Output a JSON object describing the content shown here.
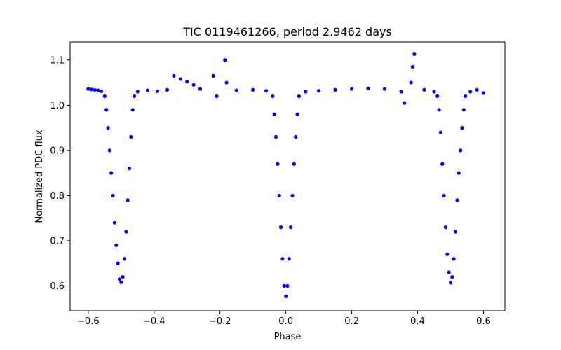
{
  "chart_data": {
    "type": "scatter",
    "title": "TIC 0119461266, period 2.9462 days",
    "xlabel": "Phase",
    "ylabel": "Normalized PDC flux",
    "xlim": [
      -0.655,
      0.665
    ],
    "ylim": [
      0.545,
      1.14
    ],
    "x_ticks": [
      -0.6,
      -0.4,
      -0.2,
      0.0,
      0.2,
      0.4,
      0.6
    ],
    "x_tick_labels": [
      "−0.6",
      "−0.4",
      "−0.2",
      "0.0",
      "0.2",
      "0.4",
      "0.6"
    ],
    "y_ticks": [
      0.6,
      0.7,
      0.8,
      0.9,
      1.0,
      1.1
    ],
    "y_tick_labels": [
      "0.6",
      "0.7",
      "0.8",
      "0.9",
      "1.0",
      "1.1"
    ],
    "grid": false,
    "legend": "none",
    "marker_color": "#0000ff",
    "series": [
      {
        "x_range": [
          -0.6,
          0.6
        ],
        "baseline": 1.032,
        "eclipses": [
          {
            "center": 0.0,
            "depth_min": 0.575,
            "half_width": 0.05
          },
          {
            "center": -0.5,
            "depth_min": 0.605,
            "half_width": 0.05
          },
          {
            "center": 0.5,
            "depth_min": 0.605,
            "half_width": 0.05
          }
        ],
        "points": [
          [
            -0.6,
            1.036
          ],
          [
            -0.59,
            1.035
          ],
          [
            -0.58,
            1.034
          ],
          [
            -0.57,
            1.033
          ],
          [
            -0.56,
            1.031
          ],
          [
            -0.55,
            1.02
          ],
          [
            -0.545,
            0.99
          ],
          [
            -0.54,
            0.95
          ],
          [
            -0.535,
            0.9
          ],
          [
            -0.53,
            0.85
          ],
          [
            -0.525,
            0.8
          ],
          [
            -0.52,
            0.74
          ],
          [
            -0.515,
            0.69
          ],
          [
            -0.51,
            0.65
          ],
          [
            -0.505,
            0.615
          ],
          [
            -0.5,
            0.608
          ],
          [
            -0.495,
            0.62
          ],
          [
            -0.49,
            0.66
          ],
          [
            -0.485,
            0.72
          ],
          [
            -0.48,
            0.79
          ],
          [
            -0.475,
            0.86
          ],
          [
            -0.47,
            0.93
          ],
          [
            -0.465,
            0.99
          ],
          [
            -0.46,
            1.02
          ],
          [
            -0.45,
            1.03
          ],
          [
            -0.42,
            1.033
          ],
          [
            -0.39,
            1.031
          ],
          [
            -0.36,
            1.034
          ],
          [
            -0.34,
            1.065
          ],
          [
            -0.32,
            1.058
          ],
          [
            -0.3,
            1.052
          ],
          [
            -0.28,
            1.045
          ],
          [
            -0.26,
            1.036
          ],
          [
            -0.22,
            1.065
          ],
          [
            -0.21,
            1.02
          ],
          [
            -0.185,
            1.1
          ],
          [
            -0.18,
            1.05
          ],
          [
            -0.15,
            1.033
          ],
          [
            -0.1,
            1.034
          ],
          [
            -0.06,
            1.032
          ],
          [
            -0.04,
            1.02
          ],
          [
            -0.035,
            0.98
          ],
          [
            -0.03,
            0.93
          ],
          [
            -0.025,
            0.87
          ],
          [
            -0.02,
            0.8
          ],
          [
            -0.015,
            0.73
          ],
          [
            -0.01,
            0.66
          ],
          [
            -0.005,
            0.6
          ],
          [
            0.0,
            0.577
          ],
          [
            0.005,
            0.6
          ],
          [
            0.01,
            0.66
          ],
          [
            0.015,
            0.73
          ],
          [
            0.02,
            0.8
          ],
          [
            0.025,
            0.87
          ],
          [
            0.03,
            0.93
          ],
          [
            0.035,
            0.98
          ],
          [
            0.04,
            1.02
          ],
          [
            0.06,
            1.03
          ],
          [
            0.1,
            1.032
          ],
          [
            0.15,
            1.034
          ],
          [
            0.2,
            1.036
          ],
          [
            0.25,
            1.037
          ],
          [
            0.3,
            1.036
          ],
          [
            0.35,
            1.03
          ],
          [
            0.36,
            1.005
          ],
          [
            0.38,
            1.05
          ],
          [
            0.385,
            1.085
          ],
          [
            0.39,
            1.113
          ],
          [
            0.42,
            1.034
          ],
          [
            0.45,
            1.03
          ],
          [
            0.46,
            1.02
          ],
          [
            0.465,
            0.99
          ],
          [
            0.47,
            0.94
          ],
          [
            0.475,
            0.87
          ],
          [
            0.48,
            0.8
          ],
          [
            0.485,
            0.73
          ],
          [
            0.49,
            0.67
          ],
          [
            0.495,
            0.63
          ],
          [
            0.5,
            0.607
          ],
          [
            0.505,
            0.62
          ],
          [
            0.51,
            0.66
          ],
          [
            0.515,
            0.72
          ],
          [
            0.52,
            0.79
          ],
          [
            0.525,
            0.85
          ],
          [
            0.53,
            0.9
          ],
          [
            0.535,
            0.95
          ],
          [
            0.54,
            0.99
          ],
          [
            0.545,
            1.02
          ],
          [
            0.56,
            1.03
          ],
          [
            0.58,
            1.034
          ],
          [
            0.6,
            1.027
          ]
        ]
      }
    ]
  }
}
